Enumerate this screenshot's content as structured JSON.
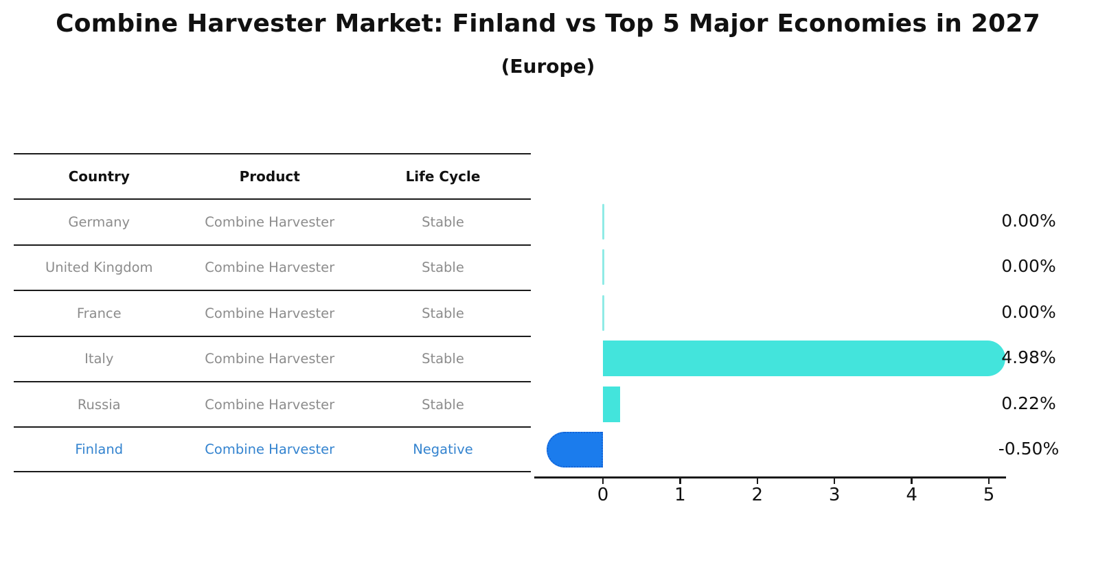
{
  "title": "Combine Harvester Market: Finland vs Top 5 Major Economies in 2027",
  "subtitle": "(Europe)",
  "table": {
    "headers": [
      "Country",
      "Product",
      "Life Cycle"
    ],
    "rows": [
      {
        "country": "Germany",
        "product": "Combine Harvester",
        "life_cycle": "Stable",
        "highlight": false
      },
      {
        "country": "United Kingdom",
        "product": "Combine Harvester",
        "life_cycle": "Stable",
        "highlight": false
      },
      {
        "country": "France",
        "product": "Combine Harvester",
        "life_cycle": "Stable",
        "highlight": false
      },
      {
        "country": "Italy",
        "product": "Combine Harvester",
        "life_cycle": "Stable",
        "highlight": false
      },
      {
        "country": "Russia",
        "product": "Combine Harvester",
        "life_cycle": "Stable",
        "highlight": false
      },
      {
        "country": "Finland",
        "product": "Combine Harvester",
        "life_cycle": "Negative",
        "highlight": true
      }
    ]
  },
  "chart_data": {
    "type": "bar",
    "orientation": "horizontal",
    "title": "Combine Harvester Market: Finland vs Top 5 Major Economies in 2027 (Europe)",
    "categories": [
      "Germany",
      "United Kingdom",
      "France",
      "Italy",
      "Russia",
      "Finland"
    ],
    "values": [
      0.0,
      0.0,
      0.0,
      4.98,
      0.22,
      -0.5
    ],
    "value_labels": [
      "0.00%",
      "0.00%",
      "0.00%",
      "4.98%",
      "0.22%",
      "-0.50%"
    ],
    "x_ticks": [
      "0",
      "1",
      "2",
      "3",
      "4",
      "5"
    ],
    "xlim": [
      -0.9,
      5.25
    ],
    "xlabel": "",
    "ylabel": "",
    "grid": false,
    "legend": false,
    "colors": {
      "positive": "#43e4dc",
      "zero": "#90ebe6",
      "negative": "#1b7ced",
      "negative_border": "#1463d6",
      "axis": "#1a1a1a",
      "label": "#111111",
      "highlight_text": "#3383cf"
    }
  }
}
